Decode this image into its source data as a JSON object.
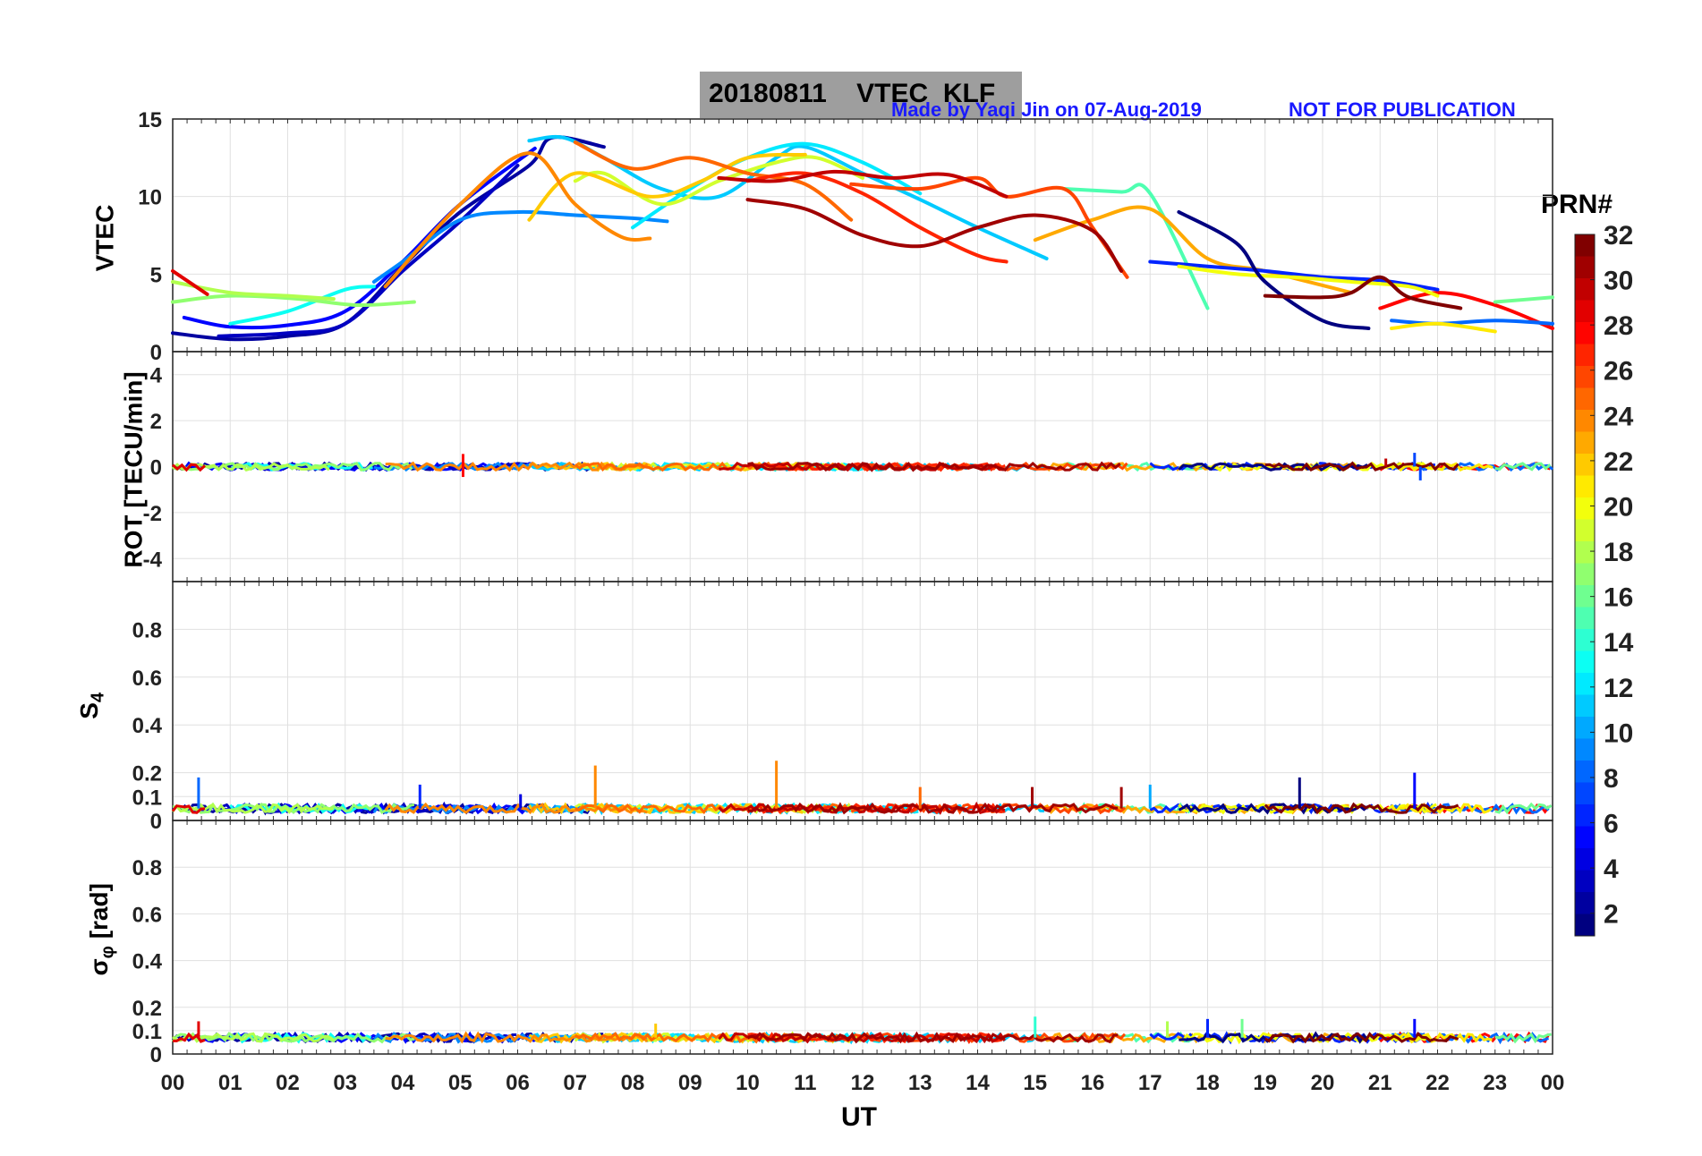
{
  "figure": {
    "title_date": "20180811",
    "title_label": "VTEC  KLF",
    "made_by": "Made by Yaqi Jin on 07-Aug-2019",
    "notice": "NOT FOR PUBLICATION",
    "colorbar_title": "PRN#",
    "colorbar_ticks": [
      "2",
      "4",
      "6",
      "8",
      "10",
      "12",
      "14",
      "16",
      "18",
      "20",
      "22",
      "24",
      "26",
      "28",
      "30",
      "32"
    ],
    "colorbar_range": [
      1,
      32
    ],
    "xlabel": "UT",
    "xticks": [
      "00",
      "01",
      "02",
      "03",
      "04",
      "05",
      "06",
      "07",
      "08",
      "09",
      "10",
      "11",
      "12",
      "13",
      "14",
      "15",
      "16",
      "17",
      "18",
      "19",
      "20",
      "21",
      "22",
      "23",
      "00"
    ],
    "colors": {
      "title_bg": "#9e9e9e",
      "annotation": "#1a1aff",
      "grid": "#e0e0e0"
    }
  },
  "chart_data": [
    {
      "type": "line",
      "panel": "vtec",
      "ylabel": "VTEC",
      "ylim": [
        0,
        15
      ],
      "yticks": [
        "0",
        "5",
        "10",
        "15"
      ],
      "xlim": [
        0,
        24
      ],
      "grid": true,
      "series": [
        {
          "prn": 2,
          "x": [
            0,
            1,
            2,
            3,
            4,
            5,
            6.2,
            6.6,
            7.5
          ],
          "y": [
            1.2,
            0.8,
            1.0,
            1.8,
            5.5,
            9.0,
            12.0,
            13.8,
            13.2
          ]
        },
        {
          "prn": 5,
          "x": [
            0.2,
            1,
            2,
            3,
            4,
            5,
            6.3
          ],
          "y": [
            2.2,
            1.6,
            1.7,
            2.6,
            5.8,
            9.5,
            13.1
          ]
        },
        {
          "prn": 3,
          "x": [
            0.8,
            2,
            3,
            4,
            5,
            6.0
          ],
          "y": [
            1.0,
            1.2,
            1.8,
            5.2,
            8.4,
            12.0
          ]
        },
        {
          "prn": 9,
          "x": [
            3.5,
            4,
            5,
            6,
            7,
            8,
            8.6
          ],
          "y": [
            4.5,
            5.8,
            8.5,
            9.0,
            8.8,
            8.6,
            8.4
          ]
        },
        {
          "prn": 11,
          "x": [
            6.2,
            6.8,
            7.5,
            8.5,
            9.5,
            10.5,
            11.0,
            12,
            13,
            14,
            15.2
          ],
          "y": [
            13.6,
            13.8,
            12.5,
            10.5,
            10.0,
            12.5,
            13.2,
            11.5,
            9.8,
            8.0,
            6.0
          ]
        },
        {
          "prn": 12,
          "x": [
            8.0,
            9.0,
            10,
            11.0,
            12,
            13.0
          ],
          "y": [
            8.0,
            10.5,
            12.5,
            13.4,
            12.2,
            10.2
          ]
        },
        {
          "prn": 13,
          "x": [
            1,
            2,
            3,
            3.5
          ],
          "y": [
            1.8,
            2.6,
            4.0,
            4.2
          ]
        },
        {
          "prn": 15,
          "x": [
            15.5,
            16.5,
            17.0,
            18.0
          ],
          "y": [
            10.5,
            10.3,
            10.2,
            2.8
          ]
        },
        {
          "prn": 17,
          "x": [
            0,
            1,
            2.2,
            3.2,
            4.2
          ],
          "y": [
            3.2,
            3.6,
            3.4,
            3.0,
            3.2
          ]
        },
        {
          "prn": 18,
          "x": [
            0,
            1,
            2,
            2.8
          ],
          "y": [
            4.5,
            3.8,
            3.6,
            3.4
          ]
        },
        {
          "prn": 19,
          "x": [
            7.0,
            7.5,
            8.5,
            9.5,
            10.5,
            11.2,
            12.0
          ],
          "y": [
            11.0,
            11.5,
            9.5,
            11.0,
            12.2,
            12.5,
            11.2
          ]
        },
        {
          "prn": 22,
          "x": [
            6.2,
            7,
            8.3,
            9.2,
            10,
            11
          ],
          "y": [
            8.5,
            11.5,
            10.0,
            11.0,
            12.5,
            12.7
          ]
        },
        {
          "prn": 23,
          "x": [
            15.0,
            16.0,
            17.0,
            18,
            19,
            20.5
          ],
          "y": [
            7.2,
            8.5,
            9.2,
            6.0,
            5.2,
            3.8
          ]
        },
        {
          "prn": 24,
          "x": [
            3.7,
            5.0,
            6.2,
            7.0,
            7.8,
            8.3
          ],
          "y": [
            4.2,
            9.5,
            12.8,
            9.5,
            7.4,
            7.3
          ]
        },
        {
          "prn": 25,
          "x": [
            7.0,
            8.0,
            9.0,
            10.0,
            11.0,
            11.8
          ],
          "y": [
            13.5,
            11.8,
            12.5,
            11.5,
            10.8,
            8.5
          ]
        },
        {
          "prn": 26,
          "x": [
            11.8,
            13.0,
            14.0,
            14.5,
            15.5,
            16.0,
            16.6
          ],
          "y": [
            10.8,
            10.5,
            11.2,
            10.0,
            10.5,
            8.0,
            4.8
          ]
        },
        {
          "prn": 27,
          "x": [
            10.0,
            11.0,
            12.0,
            13.0,
            14.0,
            14.5
          ],
          "y": [
            11.0,
            11.5,
            10.2,
            8.0,
            6.2,
            5.8
          ]
        },
        {
          "prn": 29,
          "x": [
            0,
            0.6
          ],
          "y": [
            5.2,
            3.7
          ]
        },
        {
          "prn": 30,
          "x": [
            9.5,
            10.5,
            11.5,
            12.5,
            13.5,
            14.5
          ],
          "y": [
            11.2,
            11.0,
            11.6,
            11.2,
            11.4,
            10.0
          ]
        },
        {
          "prn": 31,
          "x": [
            10.0,
            11.0,
            12.0,
            13.0,
            14.0,
            15.0,
            16.0,
            16.5
          ],
          "y": [
            9.8,
            9.2,
            7.5,
            6.8,
            8.0,
            8.8,
            7.8,
            5.2
          ]
        },
        {
          "prn": 28,
          "x": [
            21.0,
            22.0,
            23.0,
            24.0
          ],
          "y": [
            2.8,
            3.8,
            3.0,
            1.5
          ]
        },
        {
          "prn": 6,
          "x": [
            17.0,
            18.0,
            19.0,
            20.0,
            21.0,
            22.0
          ],
          "y": [
            5.8,
            5.5,
            5.2,
            4.8,
            4.6,
            4.0
          ]
        },
        {
          "prn": 8,
          "x": [
            21.2,
            22.0,
            23.0,
            24.0
          ],
          "y": [
            2.0,
            1.8,
            2.0,
            1.8
          ]
        },
        {
          "prn": 20,
          "x": [
            17.5,
            18.5,
            19.5,
            20.5,
            21.5,
            22.0
          ],
          "y": [
            5.5,
            5.0,
            4.8,
            4.5,
            4.2,
            3.6
          ]
        },
        {
          "prn": 1,
          "x": [
            17.5,
            18.5,
            19.0,
            20.0,
            20.8
          ],
          "y": [
            9.0,
            7.0,
            4.5,
            2.0,
            1.5
          ]
        },
        {
          "prn": 16,
          "x": [
            23.0,
            24.0
          ],
          "y": [
            3.2,
            3.5
          ]
        },
        {
          "prn": 21,
          "x": [
            21.2,
            22.0,
            23.0
          ],
          "y": [
            1.5,
            1.8,
            1.3
          ]
        },
        {
          "prn": 32,
          "x": [
            19.0,
            20.0,
            20.5,
            21.0,
            21.5,
            22.4
          ],
          "y": [
            3.6,
            3.5,
            3.8,
            4.8,
            3.5,
            2.8
          ]
        }
      ]
    },
    {
      "type": "line",
      "panel": "rot",
      "ylabel": "ROT [TECU/min]",
      "ylim": [
        -5,
        5
      ],
      "yticks": [
        "-4",
        "-2",
        "0",
        "2",
        "4"
      ],
      "xlim": [
        0,
        24
      ],
      "grid": true,
      "spikes": [
        {
          "x": 5.05,
          "y": 0.55,
          "prn": 28
        },
        {
          "x": 5.05,
          "y": -0.45,
          "prn": 28
        },
        {
          "x": 21.6,
          "y": 0.6,
          "prn": 7
        },
        {
          "x": 21.7,
          "y": -0.6,
          "prn": 7
        },
        {
          "x": 21.1,
          "y": 0.35,
          "prn": 30
        }
      ]
    },
    {
      "type": "line",
      "panel": "s4",
      "ylabel": "S4",
      "ylim": [
        0,
        1
      ],
      "yticks": [
        "0",
        "0.1",
        "0.2",
        "0.4",
        "0.6",
        "0.8"
      ],
      "xlim": [
        0,
        24
      ],
      "grid": true,
      "baseline": 0.05,
      "spikes": [
        {
          "x": 0.45,
          "y": 0.18,
          "prn": 8
        },
        {
          "x": 4.3,
          "y": 0.15,
          "prn": 6
        },
        {
          "x": 6.05,
          "y": 0.11,
          "prn": 4
        },
        {
          "x": 7.35,
          "y": 0.23,
          "prn": 24
        },
        {
          "x": 10.5,
          "y": 0.25,
          "prn": 24
        },
        {
          "x": 13.0,
          "y": 0.14,
          "prn": 25
        },
        {
          "x": 14.95,
          "y": 0.14,
          "prn": 31
        },
        {
          "x": 16.5,
          "y": 0.14,
          "prn": 31
        },
        {
          "x": 17.0,
          "y": 0.15,
          "prn": 10
        },
        {
          "x": 19.6,
          "y": 0.18,
          "prn": 1
        },
        {
          "x": 21.6,
          "y": 0.2,
          "prn": 5
        }
      ]
    },
    {
      "type": "line",
      "panel": "sigma_phi",
      "ylabel": "σφ [rad]",
      "ylim": [
        0,
        1
      ],
      "yticks": [
        "0",
        "0.1",
        "0.2",
        "0.4",
        "0.6",
        "0.8"
      ],
      "xlim": [
        0,
        24
      ],
      "grid": true,
      "baseline": 0.07,
      "spikes": [
        {
          "x": 0.45,
          "y": 0.14,
          "prn": 29
        },
        {
          "x": 8.4,
          "y": 0.13,
          "prn": 22
        },
        {
          "x": 15.0,
          "y": 0.16,
          "prn": 14
        },
        {
          "x": 17.3,
          "y": 0.14,
          "prn": 18
        },
        {
          "x": 18.0,
          "y": 0.15,
          "prn": 6
        },
        {
          "x": 18.6,
          "y": 0.15,
          "prn": 16
        },
        {
          "x": 21.6,
          "y": 0.15,
          "prn": 5
        }
      ]
    }
  ]
}
